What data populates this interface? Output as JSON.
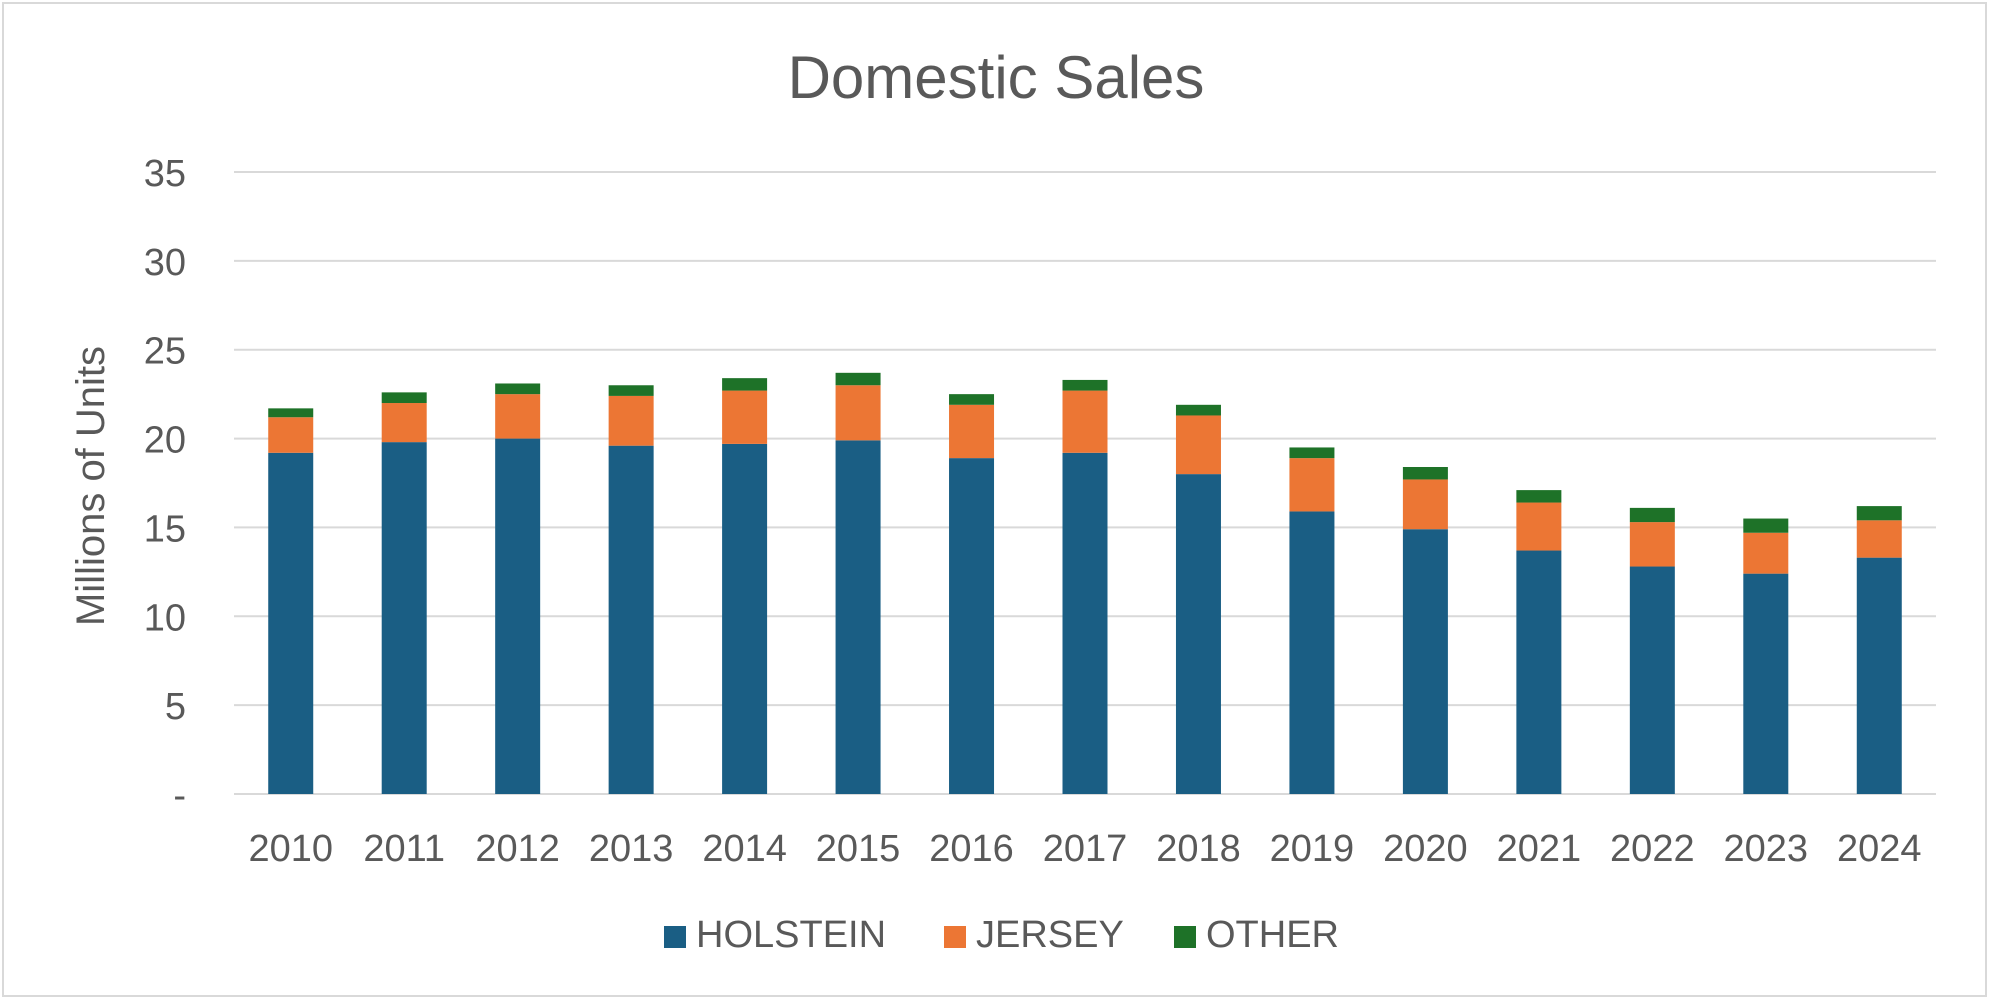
{
  "chart_data": {
    "type": "bar",
    "stacked": true,
    "title": "Domestic Sales",
    "xlabel": "",
    "ylabel": "Millions of Units",
    "ylim": [
      0,
      35
    ],
    "yticks": [
      0,
      5,
      10,
      15,
      20,
      25,
      30,
      35
    ],
    "ytick_labels": [
      "-",
      "5",
      "10",
      "15",
      "20",
      "25",
      "30",
      "35"
    ],
    "grid": true,
    "legend_position": "bottom",
    "categories": [
      "2010",
      "2011",
      "2012",
      "2013",
      "2014",
      "2015",
      "2016",
      "2017",
      "2018",
      "2019",
      "2020",
      "2021",
      "2022",
      "2023",
      "2024"
    ],
    "series": [
      {
        "name": "HOLSTEIN",
        "color": "#1a5e84",
        "values": [
          19.2,
          19.8,
          20.0,
          19.6,
          19.7,
          19.9,
          18.9,
          19.2,
          18.0,
          15.9,
          14.9,
          13.7,
          12.8,
          12.4,
          13.3
        ]
      },
      {
        "name": "JERSEY",
        "color": "#ec7634",
        "values": [
          2.0,
          2.2,
          2.5,
          2.8,
          3.0,
          3.1,
          3.0,
          3.5,
          3.3,
          3.0,
          2.8,
          2.7,
          2.5,
          2.3,
          2.1
        ]
      },
      {
        "name": "OTHER",
        "color": "#1e7228",
        "values": [
          0.5,
          0.6,
          0.6,
          0.6,
          0.7,
          0.7,
          0.6,
          0.6,
          0.6,
          0.6,
          0.7,
          0.7,
          0.8,
          0.8,
          0.8
        ]
      }
    ]
  }
}
